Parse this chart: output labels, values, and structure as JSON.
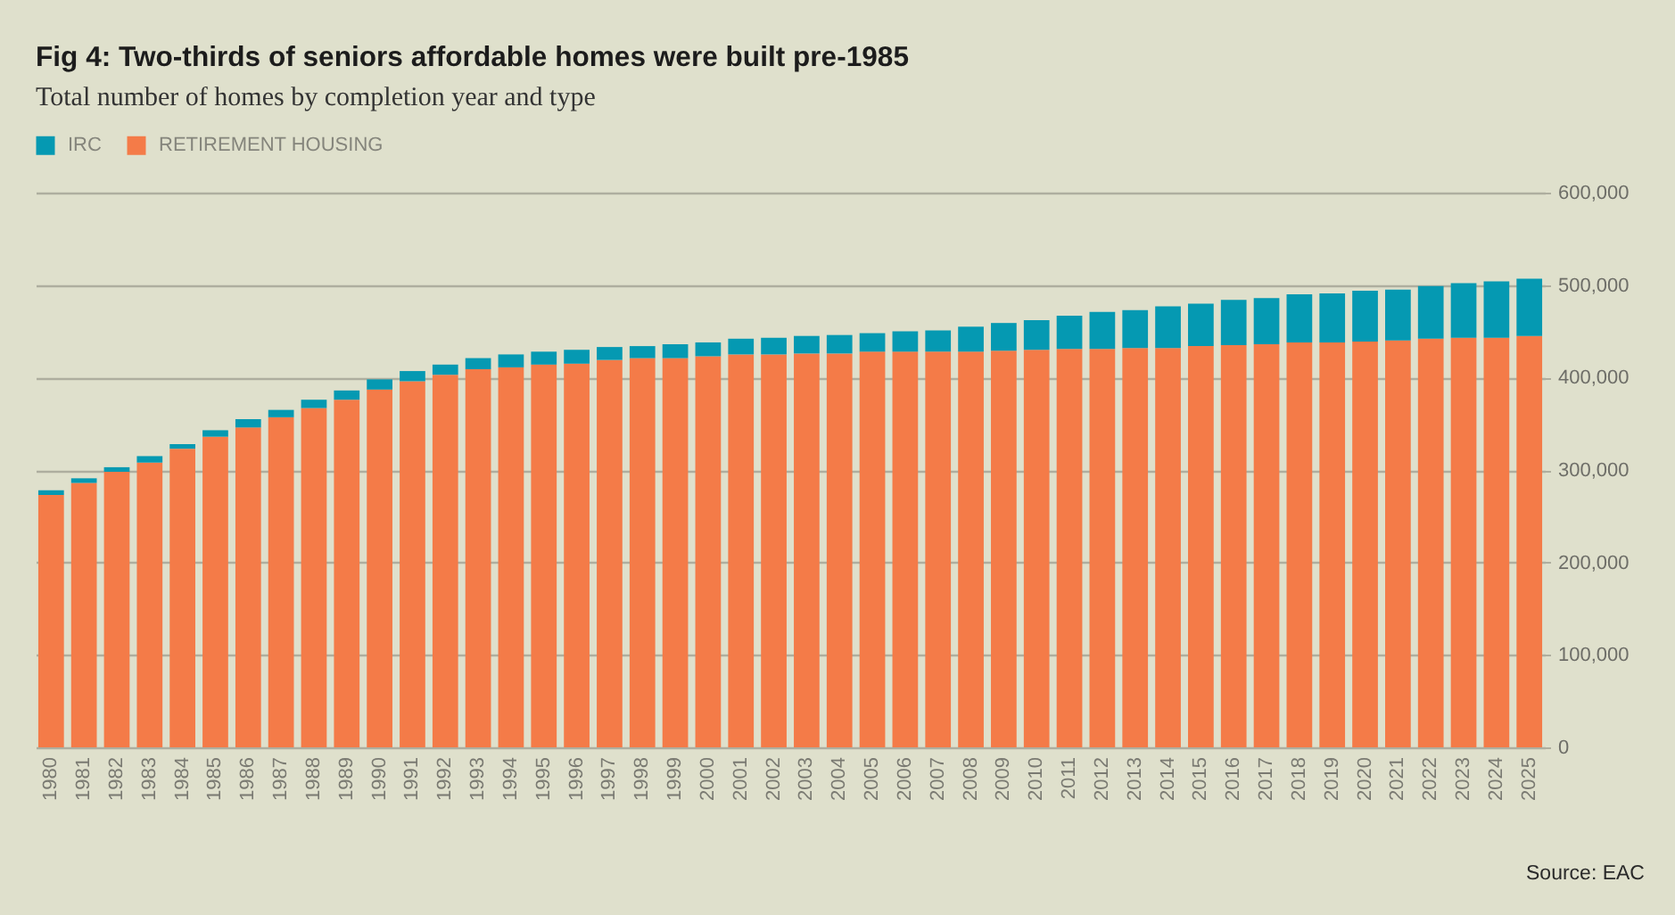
{
  "chart_data": {
    "type": "bar",
    "title": "Fig 4: Two-thirds of seniors affordable homes were built pre-1985",
    "subtitle": "Total number of homes by completion year and type",
    "categories": [
      "1980",
      "1981",
      "1982",
      "1983",
      "1984",
      "1985",
      "1986",
      "1987",
      "1988",
      "1989",
      "1990",
      "1991",
      "1992",
      "1993",
      "1994",
      "1995",
      "1996",
      "1997",
      "1998",
      "1999",
      "2000",
      "2001",
      "2002",
      "2003",
      "2004",
      "2005",
      "2006",
      "2007",
      "2008",
      "2009",
      "2010",
      "2011",
      "2012",
      "2013",
      "2014",
      "2015",
      "2016",
      "2017",
      "2018",
      "2019",
      "2020",
      "2021",
      "2022",
      "2023",
      "2024",
      "2025"
    ],
    "series": [
      {
        "name": "RETIREMENT HOUSING",
        "color": "#f47b48",
        "values": [
          273000,
          286000,
          298000,
          308000,
          323000,
          336000,
          346000,
          357000,
          367000,
          376000,
          387000,
          396000,
          403000,
          409000,
          411000,
          414000,
          415000,
          419000,
          421000,
          421000,
          423000,
          425000,
          425000,
          426000,
          426000,
          428000,
          428000,
          428000,
          428000,
          429000,
          430000,
          431000,
          431000,
          432000,
          432000,
          434000,
          435000,
          436000,
          438000,
          438000,
          439000,
          440000,
          442000,
          443000,
          443000,
          445000
        ]
      },
      {
        "name": "IRC",
        "color": "#0599b2",
        "values": [
          5000,
          5000,
          5000,
          7000,
          5000,
          7000,
          9000,
          8000,
          9000,
          10000,
          11000,
          11000,
          11000,
          12000,
          14000,
          14000,
          15000,
          14000,
          13000,
          15000,
          15000,
          17000,
          18000,
          19000,
          20000,
          20000,
          22000,
          23000,
          27000,
          30000,
          32000,
          36000,
          40000,
          41000,
          45000,
          46000,
          49000,
          50000,
          52000,
          53000,
          55000,
          55000,
          57000,
          59000,
          61000,
          62000
        ]
      }
    ],
    "stacked": true,
    "ylim": [
      0,
      600000
    ],
    "yticks": [
      0,
      {
        "value": 100000,
        "label": "100,000"
      },
      {
        "value": 200000,
        "label": "200,000"
      },
      {
        "value": 300000,
        "label": "300,000"
      },
      {
        "value": 400000,
        "label": "400,000"
      },
      {
        "value": 500000,
        "label": "500,000"
      },
      {
        "value": 600000,
        "label": "600,000"
      }
    ],
    "grid": "y",
    "legend": "top left",
    "annotations": [
      "Source: EAC"
    ]
  }
}
